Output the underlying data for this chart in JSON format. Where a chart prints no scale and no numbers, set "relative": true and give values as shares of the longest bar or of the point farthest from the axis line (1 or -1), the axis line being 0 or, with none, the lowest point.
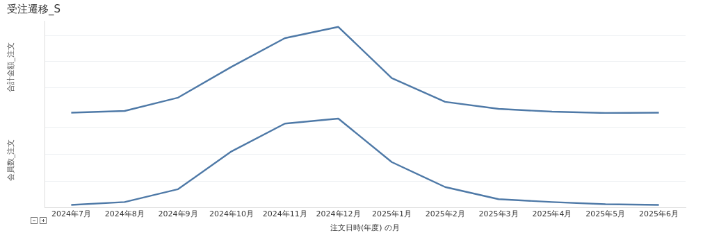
{
  "chart_data": [
    {
      "type": "line",
      "title": "受注遷移_S",
      "ylabel": "合計金額_注文",
      "relative": true,
      "grid": "y",
      "tick_labels": false,
      "categories": [
        null,
        null,
        null,
        null,
        null,
        null,
        null,
        null,
        null,
        null,
        null,
        null
      ],
      "series": [
        {
          "color": "#4e79a7",
          "values": [
            0.012,
            0.032,
            0.185,
            0.54,
            0.87,
            1,
            0.41,
            0.137,
            0.056,
            0.024,
            0.008,
            0.012
          ]
        }
      ]
    },
    {
      "type": "line",
      "ylabel": "会員数_注文",
      "xlabel": "注文日時(年度) の月",
      "relative": true,
      "grid": "y",
      "tick_labels": "x",
      "categories": [
        "2024年7月",
        "2024年8月",
        "2024年9月",
        "2024年10月",
        "2024年11月",
        "2024年12月",
        "2025年1月",
        "2025年2月",
        "2025年3月",
        "2025年4月",
        "2025年5月",
        "2025年6月"
      ],
      "series": [
        {
          "color": "#4e79a7",
          "values": [
            0.032,
            0.064,
            0.208,
            0.632,
            0.944,
            1,
            0.512,
            0.232,
            0.096,
            0.064,
            0.04,
            0.032
          ]
        }
      ]
    }
  ]
}
